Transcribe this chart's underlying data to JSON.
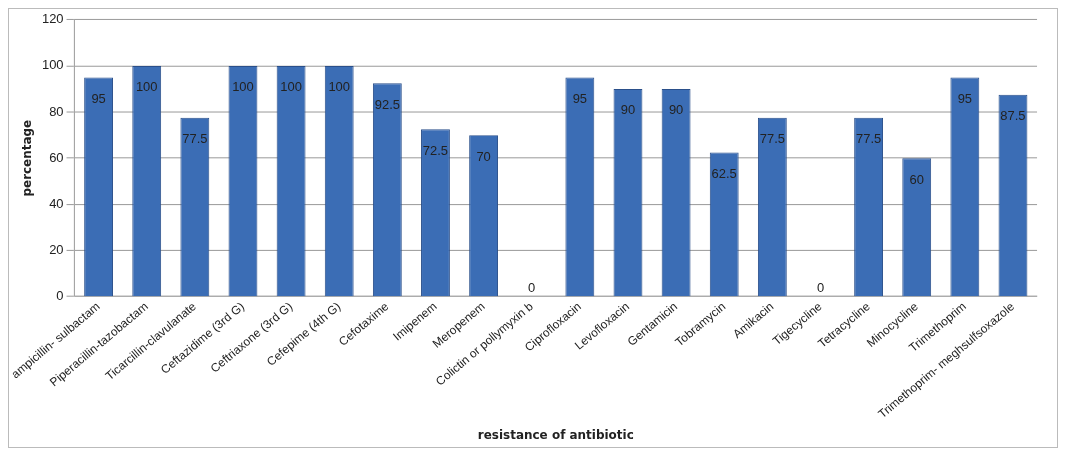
{
  "chart_data": {
    "type": "bar",
    "xlabel": "resistance of antibiotic",
    "ylabel": "percentage",
    "categories": [
      "ampicillin- sulbactam",
      "Piperacillin-tazobactam",
      "Ticarcillin-clavulanate",
      "Ceftazidime (3rd G)",
      "Ceftriaxone (3rd G)",
      "Cefepime (4th G)",
      "Cefotaxime",
      "Imipenem",
      "Meropenem",
      "Colictin or pollymyxin b",
      "Ciprofloxacin",
      "Levofloxacin",
      "Gentamicin",
      "Tobramycin",
      "Amikacin",
      "Tigecycline",
      "Tetracycline",
      "Minocycline",
      "Trimethoprim",
      "Trimethoprim- meghsulfsoxazole"
    ],
    "values": [
      95,
      100,
      77.5,
      100,
      100,
      100,
      92.5,
      72.5,
      70,
      0,
      95,
      90,
      90,
      62.5,
      77.5,
      0,
      77.5,
      60,
      95,
      87.5
    ],
    "color": "#3b6db5",
    "ylim": [
      0,
      120
    ],
    "yticks": [
      0,
      20,
      40,
      60,
      80,
      100,
      120
    ],
    "grid": "y",
    "data_labels": true,
    "legend": false
  }
}
